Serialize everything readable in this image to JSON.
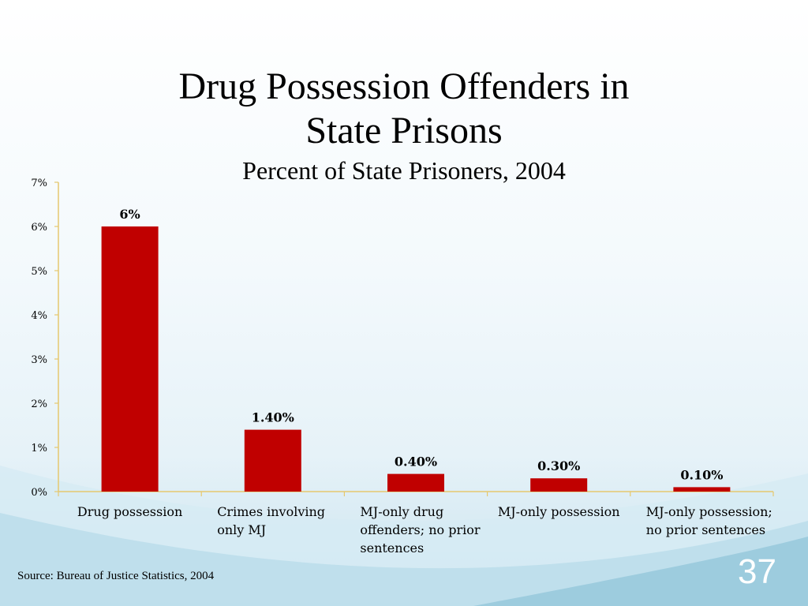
{
  "slide": {
    "title": "Drug Possession Offenders in State Prisons",
    "subtitle": "Percent of State Prisoners, 2004",
    "source": "Source: Bureau of Justice Statistics, 2004",
    "slide_number": "37"
  },
  "colors": {
    "bar": "#c00000",
    "axis": "#e6c86e",
    "background": "#f3f9fc",
    "wave": "#a9d2e3"
  },
  "chart_data": {
    "type": "bar",
    "title": "Drug Possession Offenders in State Prisons",
    "subtitle": "Percent of State Prisoners, 2004",
    "categories": [
      [
        "Drug possession"
      ],
      [
        "Crimes involving",
        "only MJ"
      ],
      [
        "MJ-only drug",
        "offenders; no prior",
        "sentences"
      ],
      [
        "MJ-only possession"
      ],
      [
        "MJ-only possession;",
        "no prior sentences"
      ]
    ],
    "values": [
      6,
      1.4,
      0.4,
      0.3,
      0.1
    ],
    "data_labels": [
      "6%",
      "1.40%",
      "0.40%",
      "0.30%",
      "0.10%"
    ],
    "ylim": [
      0,
      7
    ],
    "yticks": [
      "0%",
      "1%",
      "2%",
      "3%",
      "4%",
      "5%",
      "6%",
      "7%"
    ],
    "grid": false,
    "legend": "none"
  }
}
